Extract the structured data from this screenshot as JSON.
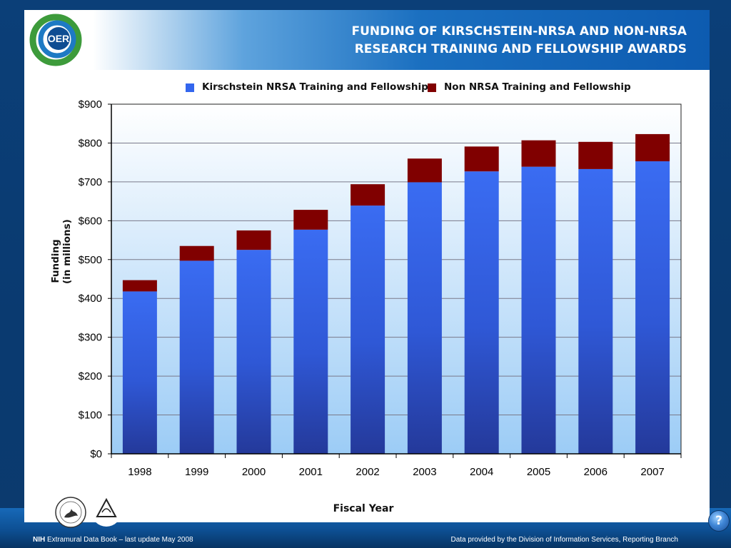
{
  "header": {
    "logo_text": "OER",
    "title_line1": "FUNDING OF KIRSCHSTEIN-NRSA AND NON-NRSA",
    "title_line2": "RESEARCH TRAINING AND FELLOWSHIP AWARDS"
  },
  "legend": {
    "nrsa": "Kirschstein NRSA Training and Fellowship",
    "non_nrsa": "Non NRSA Training and Fellowship"
  },
  "axes": {
    "ylabel_line1": "Funding",
    "ylabel_line2": "(in millions)",
    "xlabel": "Fiscal Year"
  },
  "chart_data": {
    "type": "bar",
    "stacked": true,
    "categories": [
      "1998",
      "1999",
      "2000",
      "2001",
      "2002",
      "2003",
      "2004",
      "2005",
      "2006",
      "2007"
    ],
    "series": [
      {
        "name": "Kirschstein NRSA Training and Fellowship",
        "color": "#3366ee",
        "values": [
          418,
          497,
          525,
          577,
          639,
          699,
          727,
          739,
          733,
          753
        ]
      },
      {
        "name": "Non NRSA Training and Fellowship",
        "color": "#800000",
        "values": [
          29,
          38,
          50,
          51,
          55,
          61,
          64,
          68,
          70,
          70
        ]
      }
    ],
    "ylim": [
      0,
      900
    ],
    "yticks": [
      0,
      100,
      200,
      300,
      400,
      500,
      600,
      700,
      800,
      900
    ],
    "ytick_labels": [
      "$0",
      "$100",
      "$200",
      "$300",
      "$400",
      "$500",
      "$600",
      "$700",
      "$800",
      "$900"
    ],
    "grid": true,
    "legend_position": "top"
  },
  "footer": {
    "agency": "NIH",
    "left_text": " Extramural Data Book – last update May 2008",
    "right_text": "Data provided by the Division of Information Services, Reporting Branch",
    "help_label": "?"
  },
  "seals": {
    "hhs": "DEPARTMENT OF HEALTH & HUMAN SERVICES USA",
    "nih": "NATIONAL INSTITUTES OF HEALTH"
  },
  "colors": {
    "nrsa": "#3366ee",
    "non_nrsa": "#800000",
    "plot_bg_top": "#ffffff",
    "plot_bg_bottom": "#9cccf6"
  }
}
